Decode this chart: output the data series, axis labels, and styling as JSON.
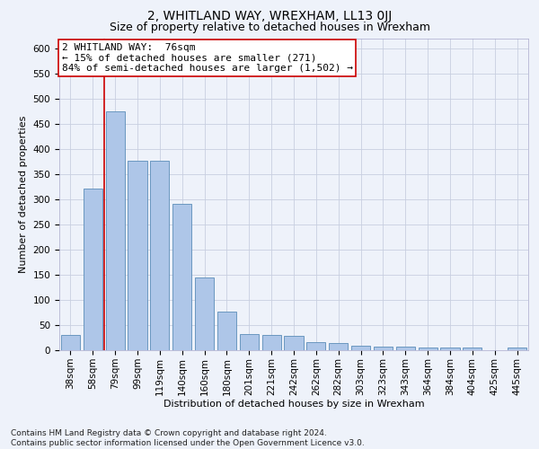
{
  "title": "2, WHITLAND WAY, WREXHAM, LL13 0JJ",
  "subtitle": "Size of property relative to detached houses in Wrexham",
  "xlabel": "Distribution of detached houses by size in Wrexham",
  "ylabel": "Number of detached properties",
  "categories": [
    "38sqm",
    "58sqm",
    "79sqm",
    "99sqm",
    "119sqm",
    "140sqm",
    "160sqm",
    "180sqm",
    "201sqm",
    "221sqm",
    "242sqm",
    "262sqm",
    "282sqm",
    "303sqm",
    "323sqm",
    "343sqm",
    "364sqm",
    "384sqm",
    "404sqm",
    "425sqm",
    "445sqm"
  ],
  "values": [
    31,
    322,
    474,
    376,
    376,
    290,
    145,
    77,
    33,
    30,
    28,
    16,
    15,
    9,
    7,
    7,
    5,
    5,
    5,
    0,
    5
  ],
  "bar_color": "#aec6e8",
  "bar_edge_color": "#5b8db8",
  "background_color": "#eef2fa",
  "grid_color": "#c8cfe0",
  "vline_color": "#cc0000",
  "annotation_text": "2 WHITLAND WAY:  76sqm\n← 15% of detached houses are smaller (271)\n84% of semi-detached houses are larger (1,502) →",
  "annotation_box_facecolor": "#ffffff",
  "annotation_box_edgecolor": "#cc0000",
  "footnote": "Contains HM Land Registry data © Crown copyright and database right 2024.\nContains public sector information licensed under the Open Government Licence v3.0.",
  "ylim": [
    0,
    620
  ],
  "yticks": [
    0,
    50,
    100,
    150,
    200,
    250,
    300,
    350,
    400,
    450,
    500,
    550,
    600
  ],
  "title_fontsize": 10,
  "subtitle_fontsize": 9,
  "axis_label_fontsize": 8,
  "tick_fontsize": 7.5,
  "annotation_fontsize": 8,
  "footnote_fontsize": 6.5
}
